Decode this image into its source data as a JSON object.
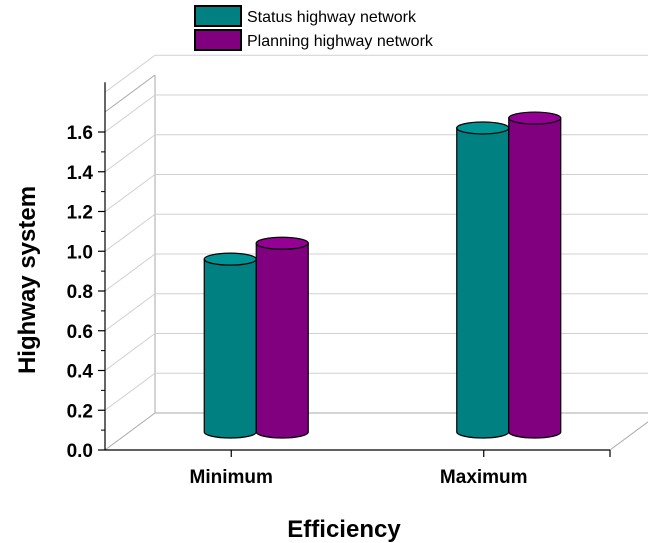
{
  "chart_data": {
    "type": "bar",
    "style": "3d-cylinder",
    "categories": [
      "Minimum",
      "Maximum"
    ],
    "series": [
      {
        "name": "Status highway network",
        "color": "#008080",
        "values": [
          0.92,
          1.58
        ]
      },
      {
        "name": "Planning highway network",
        "color": "#800080",
        "values": [
          1.0,
          1.63
        ]
      }
    ],
    "xlabel": "Efficiency",
    "ylabel": "Highway system",
    "ylim": [
      0,
      1.6
    ],
    "yticks": [
      "0.0",
      "0.2",
      "0.4",
      "0.6",
      "0.8",
      "1.0",
      "1.2",
      "1.4",
      "1.6"
    ],
    "grid": true,
    "legend_position": "top-center"
  }
}
